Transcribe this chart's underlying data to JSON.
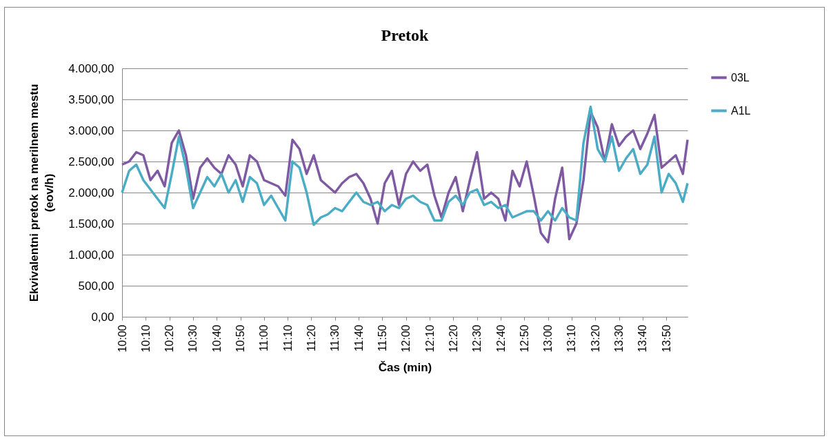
{
  "chart_data": {
    "type": "line",
    "title": "Pretok",
    "xlabel": "Čas (min)",
    "ylabel": "Ekvivalentni pretok na merilnem mestu (eov/h)",
    "x": [
      10,
      10.05,
      10.1,
      10.15,
      10.2,
      10.25,
      10.3,
      10.35,
      10.4,
      10.45,
      10.5,
      10.55,
      10.6,
      10.65,
      10.7,
      10.75,
      10.8,
      10.85,
      10.9,
      10.95,
      11,
      11.05,
      11.1,
      11.15,
      11.2,
      11.25,
      11.3,
      11.35,
      11.4,
      11.45,
      11.5,
      11.55,
      11.6,
      11.65,
      11.7,
      11.75,
      11.8,
      11.85,
      11.9,
      11.95,
      12,
      12.05,
      12.1,
      12.15,
      12.2,
      12.25,
      12.3,
      12.35,
      12.4,
      12.45,
      12.5,
      12.55,
      12.6,
      12.65,
      12.7,
      12.75,
      12.8,
      12.85,
      12.9,
      12.95,
      13,
      13.05,
      13.1,
      13.15,
      13.2,
      13.25,
      13.3,
      13.35,
      13.4,
      13.45,
      13.5,
      13.55,
      13.6,
      13.65,
      13.7,
      13.75,
      13.8,
      13.85,
      13.9,
      13.95,
      13.983
    ],
    "series": [
      {
        "name": "03L",
        "color": "#7f5aa2",
        "values": [
          2450,
          2500,
          2650,
          2600,
          2200,
          2350,
          2100,
          2800,
          3000,
          2600,
          1900,
          2400,
          2550,
          2400,
          2300,
          2600,
          2450,
          2100,
          2600,
          2500,
          2200,
          2150,
          2100,
          1950,
          2850,
          2700,
          2300,
          2600,
          2200,
          2100,
          2000,
          2150,
          2250,
          2300,
          2150,
          1900,
          1500,
          2150,
          2350,
          1800,
          2300,
          2500,
          2350,
          2450,
          1950,
          1600,
          2000,
          2250,
          1700,
          2200,
          2650,
          1900,
          2000,
          1900,
          1550,
          2350,
          2100,
          2500,
          1950,
          1350,
          1200,
          1900,
          2400,
          1250,
          1500,
          2200,
          3300,
          3050,
          2500,
          3100,
          2750,
          2900,
          3000,
          2700,
          2950,
          3250,
          2400,
          2500,
          2600,
          2300,
          2850
        ]
      },
      {
        "name": "A1L",
        "color": "#4bacc6",
        "values": [
          2000,
          2350,
          2450,
          2200,
          2050,
          1900,
          1750,
          2300,
          2900,
          2400,
          1750,
          2000,
          2250,
          2100,
          2300,
          2000,
          2200,
          1850,
          2250,
          2150,
          1800,
          1950,
          1750,
          1550,
          2500,
          2400,
          2000,
          1480,
          1600,
          1650,
          1750,
          1700,
          1850,
          2000,
          1850,
          1800,
          1850,
          1700,
          1800,
          1750,
          1900,
          1950,
          1850,
          1800,
          1550,
          1550,
          1850,
          1950,
          1800,
          2000,
          2050,
          1800,
          1850,
          1750,
          1800,
          1600,
          1650,
          1700,
          1700,
          1550,
          1700,
          1550,
          1750,
          1600,
          1550,
          2800,
          3380,
          2700,
          2500,
          2900,
          2350,
          2550,
          2700,
          2300,
          2450,
          2900,
          2000,
          2300,
          2150,
          1850,
          2150
        ]
      }
    ],
    "xlim": [
      10,
      13.983
    ],
    "xticks": [
      {
        "value": 10,
        "label": "10:00"
      },
      {
        "value": 10.1667,
        "label": "10:10"
      },
      {
        "value": 10.3333,
        "label": "10:20"
      },
      {
        "value": 10.5,
        "label": "10:30"
      },
      {
        "value": 10.6667,
        "label": "10:40"
      },
      {
        "value": 10.8333,
        "label": "10:50"
      },
      {
        "value": 11,
        "label": "11:00"
      },
      {
        "value": 11.1667,
        "label": "11:10"
      },
      {
        "value": 11.3333,
        "label": "11:20"
      },
      {
        "value": 11.5,
        "label": "11:30"
      },
      {
        "value": 11.6667,
        "label": "11:40"
      },
      {
        "value": 11.8333,
        "label": "11:50"
      },
      {
        "value": 12,
        "label": "12:00"
      },
      {
        "value": 12.1667,
        "label": "12:10"
      },
      {
        "value": 12.3333,
        "label": "12:20"
      },
      {
        "value": 12.5,
        "label": "12:30"
      },
      {
        "value": 12.6667,
        "label": "12:40"
      },
      {
        "value": 12.8333,
        "label": "12:50"
      },
      {
        "value": 13,
        "label": "13:00"
      },
      {
        "value": 13.1667,
        "label": "13:10"
      },
      {
        "value": 13.3333,
        "label": "13:20"
      },
      {
        "value": 13.5,
        "label": "13:30"
      },
      {
        "value": 13.6667,
        "label": "13:40"
      },
      {
        "value": 13.8333,
        "label": "13:50"
      }
    ],
    "ylim": [
      0,
      4000
    ],
    "yticks": [
      {
        "value": 0,
        "label": "0,00"
      },
      {
        "value": 500,
        "label": "500,00"
      },
      {
        "value": 1000,
        "label": "1.000,00"
      },
      {
        "value": 1500,
        "label": "1.500,00"
      },
      {
        "value": 2000,
        "label": "2.000,00"
      },
      {
        "value": 2500,
        "label": "2.500,00"
      },
      {
        "value": 3000,
        "label": "3.000,00"
      },
      {
        "value": 3500,
        "label": "3.500,00"
      },
      {
        "value": 4000,
        "label": "4.000,00"
      }
    ],
    "grid": "y",
    "legend": "right",
    "line_style": "solid"
  }
}
